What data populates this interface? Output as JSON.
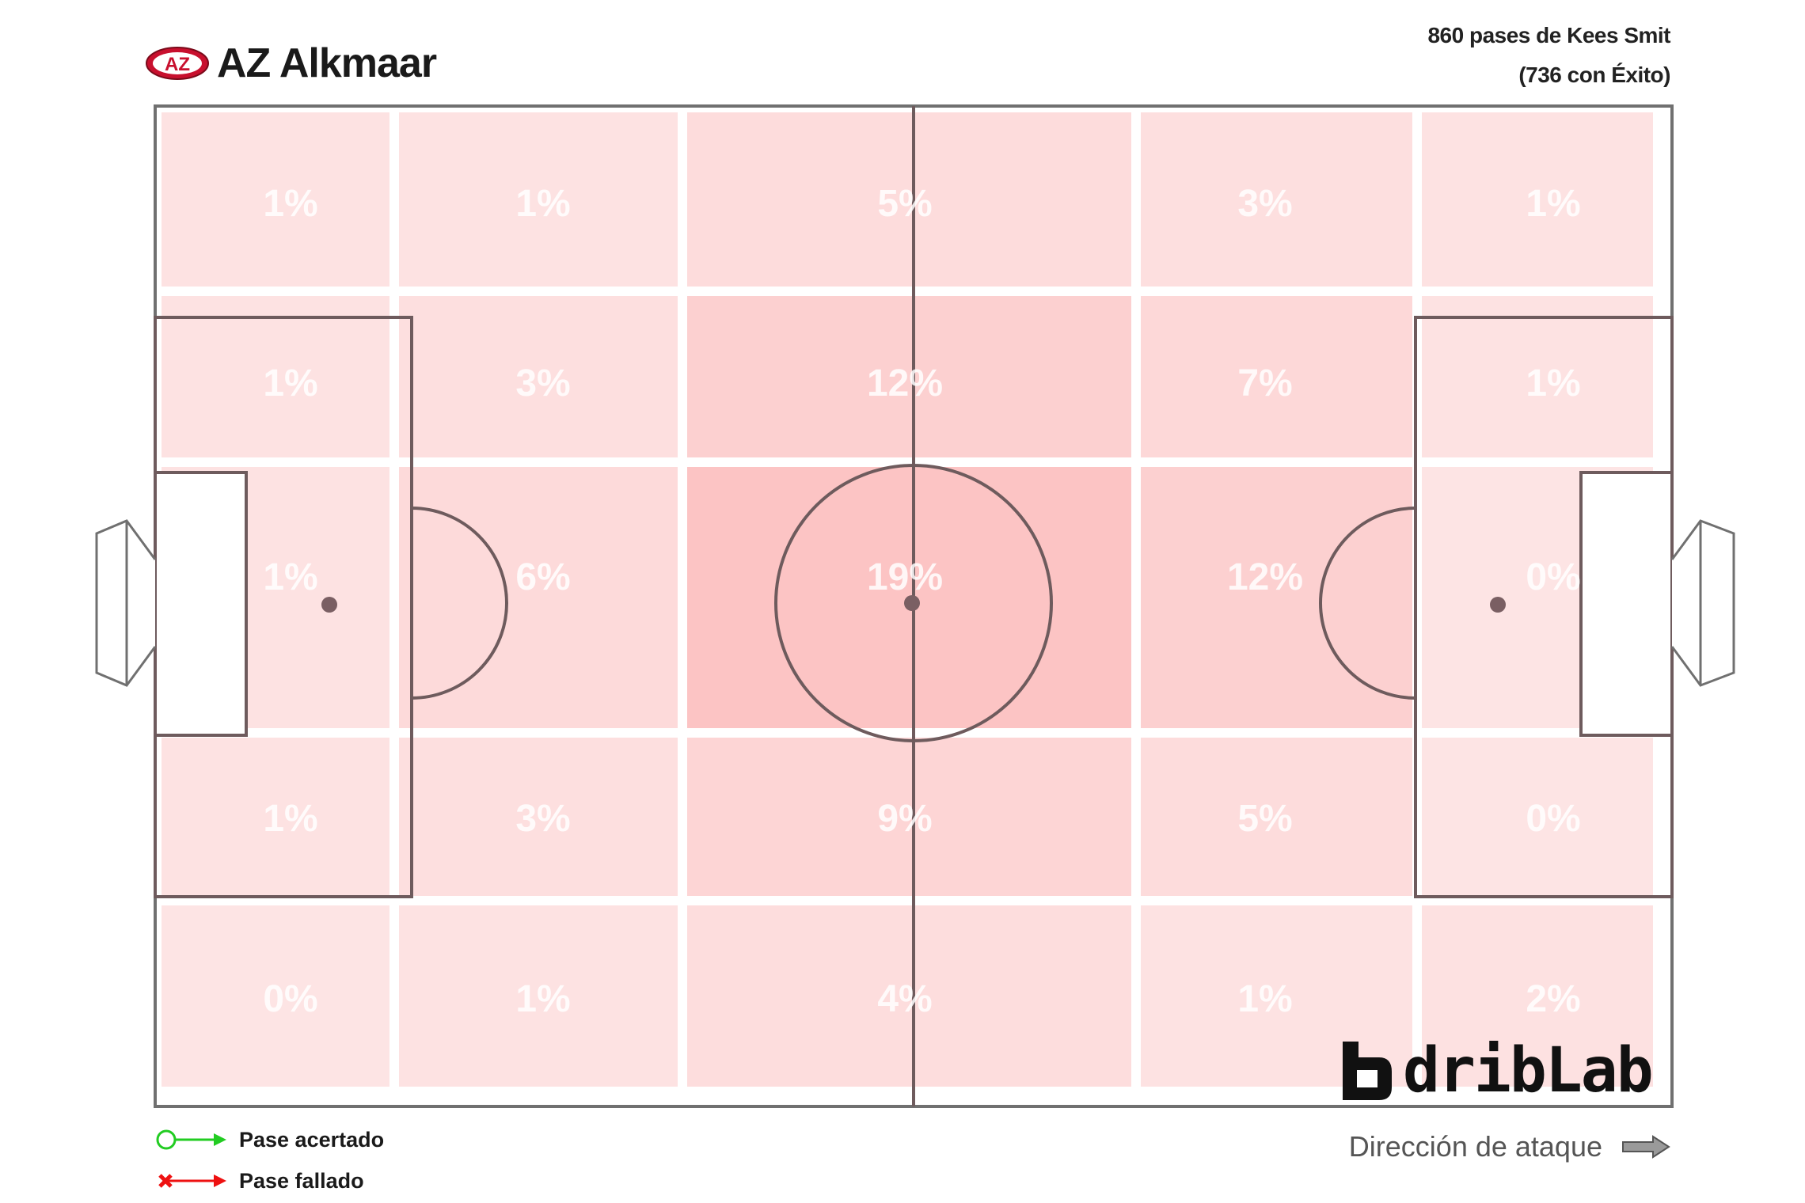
{
  "header": {
    "team": "AZ Alkmaar",
    "logo_text": "AZ",
    "subtitle_line1": "860 pases de Kees Smit",
    "subtitle_line2": "(736 con Éxito)"
  },
  "legend": {
    "success_label": "Pase acertado",
    "fail_label": "Pase fallado",
    "success_color": "#22cc22",
    "fail_color": "#ee1111"
  },
  "attack_direction": {
    "label": "Dirección de ataque",
    "icon": "arrow-right-icon"
  },
  "brand": {
    "text": "dribLab",
    "icon": "driblab-logo-icon"
  },
  "chart_data": {
    "type": "heatmap",
    "title": "860 pases de Kees Smit",
    "subtitle": "(736 con Éxito)",
    "grid": {
      "columns": 5,
      "rows": 5
    },
    "orientation": "attacking left to right",
    "zones_percent": [
      [
        1,
        1,
        5,
        3,
        1
      ],
      [
        1,
        3,
        12,
        7,
        1
      ],
      [
        1,
        6,
        19,
        12,
        0
      ],
      [
        1,
        3,
        9,
        5,
        0
      ],
      [
        0,
        1,
        4,
        1,
        2
      ]
    ],
    "labels": [
      [
        "1%",
        "1%",
        "5%",
        "3%",
        "1%"
      ],
      [
        "1%",
        "3%",
        "12%",
        "7%",
        "1%"
      ],
      [
        "1%",
        "6%",
        "19%",
        "12%",
        "0%"
      ],
      [
        "1%",
        "3%",
        "9%",
        "5%",
        "0%"
      ],
      [
        "0%",
        "1%",
        "4%",
        "1%",
        "2%"
      ]
    ],
    "color_scale": {
      "low": "#fde4e4",
      "high": "#fcc4c4"
    }
  }
}
